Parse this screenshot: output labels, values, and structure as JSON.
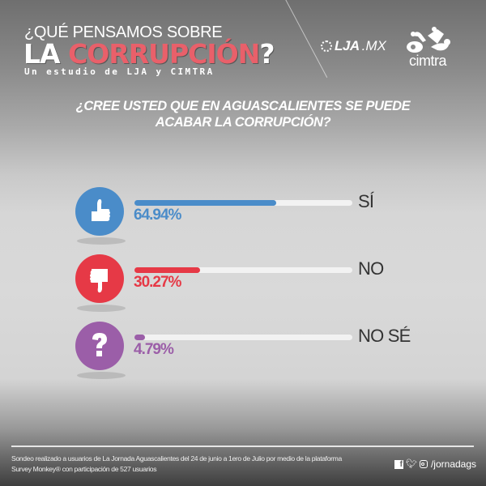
{
  "header": {
    "title_line1": "¿QUÉ PENSAMOS SOBRE",
    "title_line2_white": "LA",
    "title_line2_accent": "CORRUPCIÓN",
    "title_line2_end": "?",
    "subtitle": "Un estudio de LJA y CIMTRA",
    "logo_lja_bold": "LJA",
    "logo_lja_suffix": ".MX",
    "logo_cimtra": "cimtra",
    "accent_color": "#e9606a"
  },
  "question": {
    "line1": "¿CREE USTED QUE EN AGUASCALIENTES SE PUEDE",
    "line2": "ACABAR LA CORRUPCIÓN?"
  },
  "chart_data": {
    "type": "bar",
    "title": "¿CREE USTED QUE EN AGUASCALIENTES SE PUEDE ACABAR LA CORRUPCIÓN?",
    "categories": [
      "SÍ",
      "NO",
      "NO SÉ"
    ],
    "values": [
      64.94,
      30.27,
      4.79
    ],
    "value_labels": [
      "64.94%",
      "30.27%",
      "4.79%"
    ],
    "colors": [
      "#4a8cc9",
      "#e63946",
      "#9b5ea8"
    ],
    "icons": [
      "thumbs-up-icon",
      "thumbs-down-icon",
      "question-mark-icon"
    ],
    "xlim": [
      0,
      100
    ],
    "orientation": "horizontal"
  },
  "footer": {
    "note_line1": "Sondeo realizado a usuarios de La Jornada Aguascalientes del 24 de junio a 1ero de Julio por medio de la plataforma",
    "note_line2": "Survey Monkey® con participación de 527 usuarios",
    "social_handle": "/jornadags",
    "social_icons": [
      "facebook-icon",
      "twitter-icon",
      "instagram-icon"
    ]
  }
}
